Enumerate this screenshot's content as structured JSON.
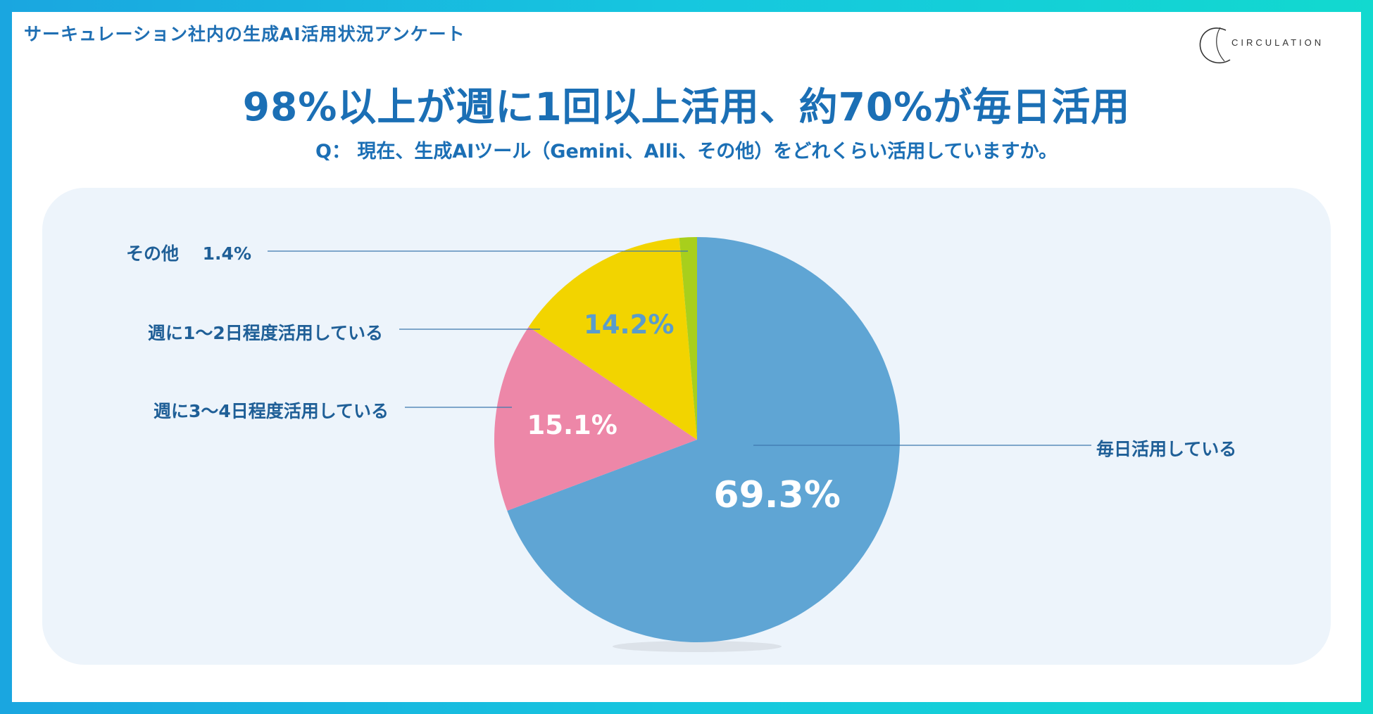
{
  "header": {
    "title": "サーキュレーション社内の生成AI活用状況アンケート"
  },
  "logo": {
    "text": "CIRCULATION"
  },
  "headline": "98%以上が週に1回以上活用、約70%が毎日活用",
  "question": "Q：  現在、生成AIツール（Gemini、Alli、その他）をどれくらい活用していますか。",
  "chart_data": {
    "type": "pie",
    "start": "12 o'clock",
    "direction": "clockwise",
    "slices": [
      {
        "label": "毎日活用している",
        "value": 69.3,
        "display": "69.3%",
        "color": "#5fa5d4"
      },
      {
        "label": "週に3〜4日程度活用している",
        "value": 15.1,
        "display": "15.1%",
        "color": "#ed87a8"
      },
      {
        "label": "週に1〜2日程度活用している",
        "value": 14.2,
        "display": "14.2%",
        "color": "#f2d400"
      },
      {
        "label": "その他",
        "value": 1.4,
        "display": "1.4%",
        "color": "#a8cf1c"
      }
    ]
  }
}
